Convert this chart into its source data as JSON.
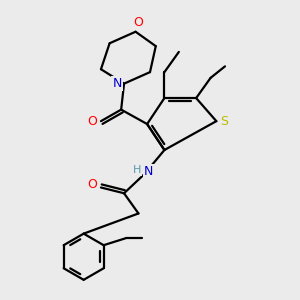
{
  "bg_color": "#ebebeb",
  "atom_colors": {
    "C": "#000000",
    "N": "#0000cc",
    "O": "#ff0000",
    "S": "#bbbb00",
    "H": "#5599aa"
  },
  "bond_color": "#000000",
  "bond_width": 1.6
}
